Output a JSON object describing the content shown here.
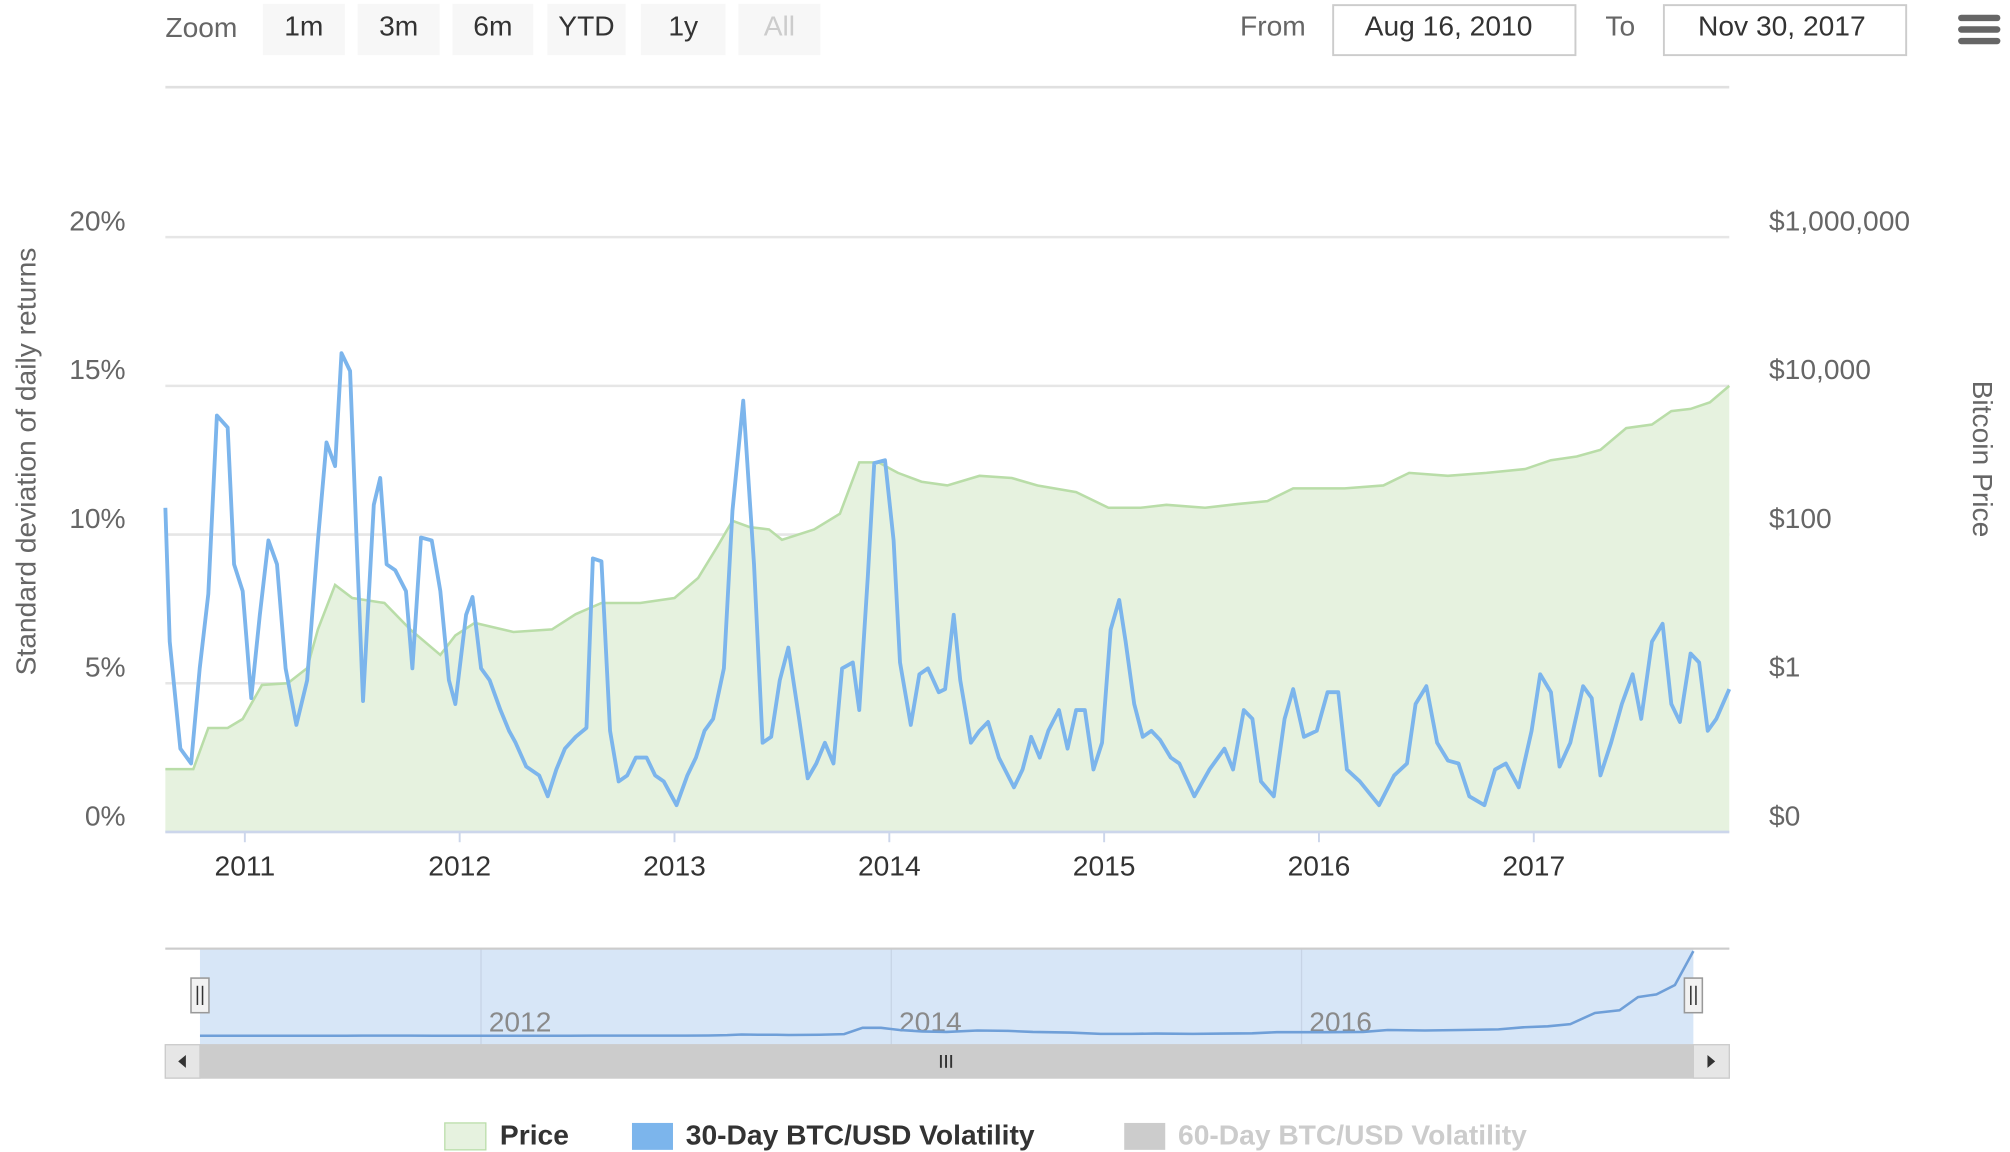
{
  "zoom": {
    "label": "Zoom",
    "buttons": [
      "1m",
      "3m",
      "6m",
      "YTD",
      "1y",
      "All"
    ]
  },
  "range": {
    "from_label": "From",
    "from": "Aug 16, 2010",
    "to_label": "To",
    "to": "Nov 30, 2017"
  },
  "chart_data": {
    "type": "line",
    "y_label": "Standard deviation of daily returns",
    "y2_label": "Bitcoin Price",
    "xlim": [
      2010.63,
      2017.91
    ],
    "xticks": [
      2011,
      2012,
      2013,
      2014,
      2015,
      2016,
      2017
    ],
    "ylim": [
      0,
      20
    ],
    "yticks": [
      {
        "value": 0,
        "label": "0%"
      },
      {
        "value": 5,
        "label": "5%"
      },
      {
        "value": 10,
        "label": "10%"
      },
      {
        "value": 15,
        "label": "15%"
      },
      {
        "value": 20,
        "label": "20%"
      }
    ],
    "y2lim": [
      0.01,
      1000000
    ],
    "y2ticks": [
      {
        "value": 0.01,
        "label": "$0"
      },
      {
        "value": 1,
        "label": "$1"
      },
      {
        "value": 100,
        "label": "$100"
      },
      {
        "value": 10000,
        "label": "$10,000"
      },
      {
        "value": 1000000,
        "label": "$1,000,000"
      }
    ],
    "y2_log": true,
    "grid": true,
    "legend": "bottom",
    "series": [
      {
        "name": "Price",
        "type": "area",
        "axis": "y2",
        "color": "#b9dda8",
        "fill": "#e6f2df",
        "x": [
          2010.63,
          2010.76,
          2010.83,
          2010.92,
          2010.99,
          2011.08,
          2011.2,
          2011.29,
          2011.34,
          2011.42,
          2011.5,
          2011.65,
          2011.77,
          2011.91,
          2011.98,
          2012.07,
          2012.25,
          2012.43,
          2012.54,
          2012.66,
          2012.84,
          2013.0,
          2013.11,
          2013.2,
          2013.27,
          2013.35,
          2013.44,
          2013.5,
          2013.65,
          2013.77,
          2013.86,
          2013.95,
          2014.04,
          2014.15,
          2014.27,
          2014.42,
          2014.57,
          2014.69,
          2014.87,
          2015.02,
          2015.17,
          2015.29,
          2015.47,
          2015.62,
          2015.76,
          2015.88,
          2016.0,
          2016.12,
          2016.3,
          2016.42,
          2016.6,
          2016.78,
          2016.96,
          2017.08,
          2017.2,
          2017.31,
          2017.43,
          2017.55,
          2017.64,
          2017.73,
          2017.82,
          2017.91
        ],
        "values": [
          0.07,
          0.07,
          0.25,
          0.25,
          0.33,
          0.95,
          1,
          1.6,
          5.3,
          21,
          14,
          12,
          5.3,
          2.4,
          4.4,
          6.5,
          4.9,
          5.3,
          8.5,
          12,
          12,
          14,
          26,
          69,
          153,
          126,
          117,
          85,
          117,
          190,
          935,
          935,
          676,
          513,
          457,
          617,
          575,
          457,
          372,
          229,
          229,
          251,
          229,
          257,
          282,
          417,
          417,
          417,
          457,
          676,
          617,
          676,
          759,
          1000,
          1122,
          1380,
          2700,
          3020,
          4570,
          4900,
          6000,
          10000
        ]
      },
      {
        "name": "30-Day BTC/USD Volatility",
        "type": "line",
        "color": "#7cb5ec",
        "x": [
          2010.63,
          2010.65,
          2010.7,
          2010.75,
          2010.79,
          2010.83,
          2010.87,
          2010.92,
          2010.95,
          2010.99,
          2011.03,
          2011.07,
          2011.11,
          2011.15,
          2011.19,
          2011.24,
          2011.29,
          2011.34,
          2011.38,
          2011.42,
          2011.45,
          2011.49,
          2011.52,
          2011.55,
          2011.6,
          2011.63,
          2011.66,
          2011.7,
          2011.75,
          2011.78,
          2011.82,
          2011.87,
          2011.91,
          2011.95,
          2011.98,
          2012.03,
          2012.06,
          2012.1,
          2012.14,
          2012.19,
          2012.23,
          2012.26,
          2012.31,
          2012.37,
          2012.41,
          2012.45,
          2012.49,
          2012.54,
          2012.59,
          2012.62,
          2012.66,
          2012.7,
          2012.74,
          2012.78,
          2012.82,
          2012.87,
          2012.91,
          2012.95,
          2013.01,
          2013.06,
          2013.1,
          2013.14,
          2013.18,
          2013.23,
          2013.27,
          2013.32,
          2013.37,
          2013.41,
          2013.45,
          2013.49,
          2013.53,
          2013.58,
          2013.62,
          2013.66,
          2013.7,
          2013.74,
          2013.78,
          2013.83,
          2013.86,
          2013.9,
          2013.93,
          2013.98,
          2014.02,
          2014.05,
          2014.1,
          2014.14,
          2014.18,
          2014.23,
          2014.26,
          2014.3,
          2014.33,
          2014.38,
          2014.42,
          2014.46,
          2014.51,
          2014.58,
          2014.62,
          2014.66,
          2014.7,
          2014.74,
          2014.79,
          2014.83,
          2014.87,
          2014.91,
          2014.95,
          2014.99,
          2015.03,
          2015.07,
          2015.1,
          2015.14,
          2015.18,
          2015.22,
          2015.26,
          2015.31,
          2015.35,
          2015.42,
          2015.49,
          2015.56,
          2015.6,
          2015.65,
          2015.69,
          2015.73,
          2015.79,
          2015.84,
          2015.88,
          2015.93,
          2015.99,
          2016.04,
          2016.09,
          2016.13,
          2016.19,
          2016.28,
          2016.35,
          2016.41,
          2016.45,
          2016.5,
          2016.55,
          2016.6,
          2016.65,
          2016.7,
          2016.77,
          2016.82,
          2016.87,
          2016.93,
          2016.99,
          2017.03,
          2017.08,
          2017.12,
          2017.17,
          2017.23,
          2017.27,
          2017.31,
          2017.36,
          2017.41,
          2017.46,
          2017.5,
          2017.55,
          2017.6,
          2017.64,
          2017.68,
          2017.73,
          2017.77,
          2017.81,
          2017.85,
          2017.91
        ],
        "values": [
          10.9,
          6.4,
          2.8,
          2.3,
          5.5,
          8,
          14,
          13.6,
          9,
          8.1,
          4.5,
          7.3,
          9.8,
          9,
          5.5,
          3.6,
          5.1,
          9.8,
          13.1,
          12.3,
          16.1,
          15.5,
          9.9,
          4.4,
          11,
          11.9,
          9,
          8.8,
          8.1,
          5.5,
          9.9,
          9.8,
          8.1,
          5.1,
          4.3,
          7.3,
          7.9,
          5.5,
          5.1,
          4.1,
          3.4,
          3,
          2.2,
          1.9,
          1.2,
          2.1,
          2.8,
          3.2,
          3.5,
          9.2,
          9.1,
          3.4,
          1.7,
          1.9,
          2.5,
          2.5,
          1.9,
          1.7,
          0.9,
          1.9,
          2.5,
          3.4,
          3.8,
          5.5,
          10.8,
          14.5,
          9,
          3,
          3.2,
          5.1,
          6.2,
          3.8,
          1.8,
          2.3,
          3,
          2.3,
          5.5,
          5.7,
          4.1,
          8.6,
          12.4,
          12.5,
          9.8,
          5.7,
          3.6,
          5.3,
          5.5,
          4.7,
          4.8,
          7.3,
          5.1,
          3,
          3.4,
          3.7,
          2.5,
          1.5,
          2.1,
          3.2,
          2.5,
          3.4,
          4.1,
          2.8,
          4.1,
          4.1,
          2.1,
          3,
          6.8,
          7.8,
          6.4,
          4.3,
          3.2,
          3.4,
          3.1,
          2.5,
          2.3,
          1.2,
          2.1,
          2.8,
          2.1,
          4.1,
          3.8,
          1.7,
          1.2,
          3.8,
          4.8,
          3.2,
          3.4,
          4.7,
          4.7,
          2.1,
          1.7,
          0.9,
          1.9,
          2.3,
          4.3,
          4.9,
          3,
          2.4,
          2.3,
          1.2,
          0.9,
          2.1,
          2.3,
          1.5,
          3.4,
          5.3,
          4.7,
          2.2,
          3,
          4.9,
          4.5,
          1.9,
          3,
          4.3,
          5.3,
          3.8,
          6.4,
          7,
          4.3,
          3.7,
          6,
          5.7,
          3.4,
          3.8,
          4.8
        ]
      },
      {
        "name": "60-Day BTC/USD Volatility",
        "type": "line",
        "color": "#cccccc",
        "visible": false
      }
    ],
    "navigator": {
      "xticks": [
        2012,
        2014,
        2016
      ]
    }
  }
}
